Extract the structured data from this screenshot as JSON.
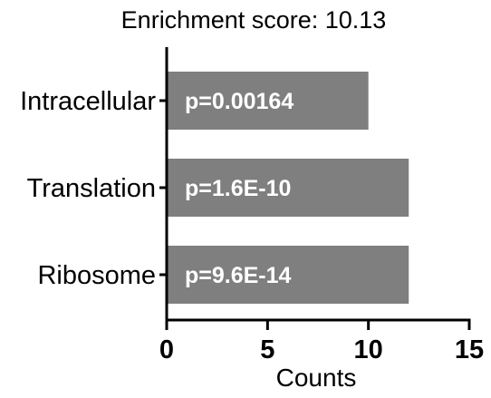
{
  "chart_data": {
    "type": "bar",
    "orientation": "horizontal",
    "title": "Enrichment score: 10.13",
    "xlabel": "Counts",
    "ylabel": "",
    "xlim": [
      0,
      15
    ],
    "xticks": [
      "0",
      "5",
      "10",
      "15"
    ],
    "categories": [
      "Intracellular",
      "Translation",
      "Ribosome"
    ],
    "values": [
      10,
      12,
      12
    ],
    "bar_labels": [
      "p=0.00164",
      "p=1.6E-10",
      "p=9.6E-14"
    ],
    "bar_color": "#7f7f7f",
    "grid": false,
    "legend": "none"
  }
}
